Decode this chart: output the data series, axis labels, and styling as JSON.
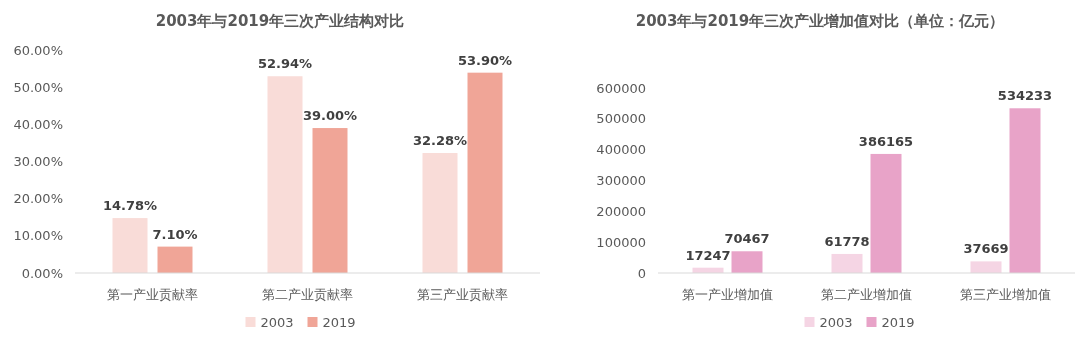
{
  "chart_data": [
    {
      "type": "bar",
      "title": "2003年与2019年三次产业结构对比",
      "categories": [
        "第一产业贡献率",
        "第二产业贡献率",
        "第三产业贡献率"
      ],
      "series": [
        {
          "name": "2003",
          "color": "#f9dcd8",
          "values": [
            14.78,
            52.94,
            32.28
          ],
          "value_labels": [
            "14.78%",
            "52.94%",
            "32.28%"
          ]
        },
        {
          "name": "2019",
          "color": "#f0a597",
          "values": [
            7.1,
            39.0,
            53.9
          ],
          "value_labels": [
            "7.10%",
            "39.00%",
            "53.90%"
          ]
        }
      ],
      "ylim": [
        0,
        60
      ],
      "yticks": [
        {
          "value": 0,
          "label": "0.00%"
        },
        {
          "value": 10,
          "label": "10.00%"
        },
        {
          "value": 20,
          "label": "20.00%"
        },
        {
          "value": 30,
          "label": "30.00%"
        },
        {
          "value": 40,
          "label": "40.00%"
        },
        {
          "value": 50,
          "label": "50.00%"
        },
        {
          "value": 60,
          "label": "60.00%"
        }
      ],
      "grid": false,
      "legend": "bottom"
    },
    {
      "type": "bar",
      "title": "2003年与2019年三次产业增加值对比（单位：亿元）",
      "categories": [
        "第一产业增加值",
        "第二产业增加值",
        "第三产业增加值"
      ],
      "series": [
        {
          "name": "2003",
          "color": "#f5d5e4",
          "values": [
            17247,
            61778,
            37669
          ]
        },
        {
          "name": "2019",
          "color": "#e8a3c8",
          "values": [
            70467,
            386165,
            534233
          ]
        }
      ],
      "ylim": [
        0,
        600000
      ],
      "yticks": [
        0,
        100000,
        200000,
        300000,
        400000,
        500000,
        600000
      ],
      "data_labels": true,
      "grid": false,
      "legend": "bottom"
    }
  ]
}
